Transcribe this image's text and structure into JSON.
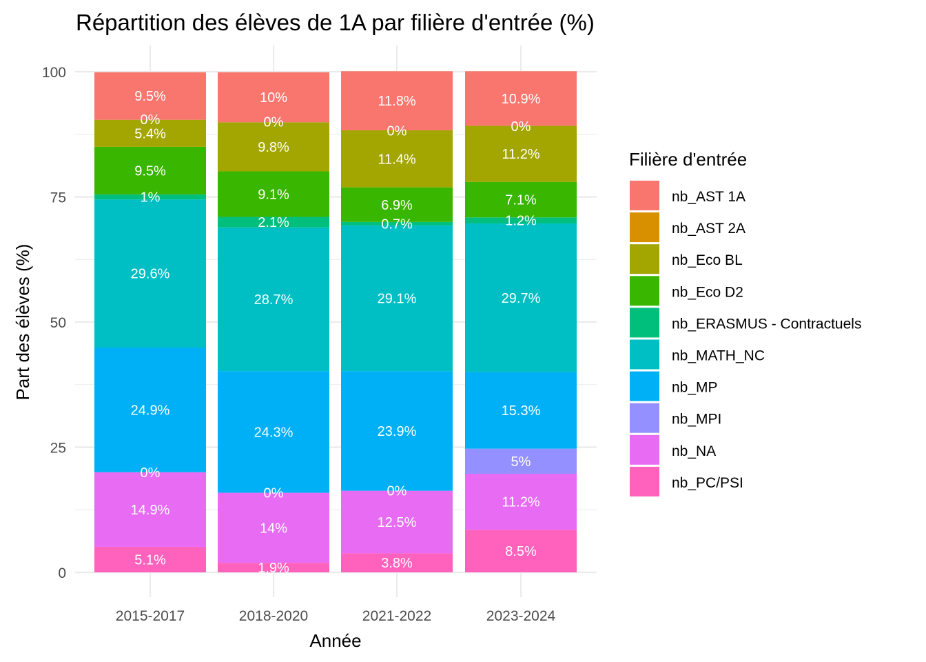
{
  "chart_data": {
    "type": "bar",
    "stacked": true,
    "title": "Répartition des élèves de 1A par filière d'entrée (%)",
    "xlabel": "Année",
    "ylabel": "Part des élèves (%)",
    "ylim": [
      0,
      100
    ],
    "yticks": [
      "0",
      "25",
      "50",
      "75",
      "100"
    ],
    "grid": true,
    "legend_title": "Filière d'entrée",
    "legend_position": "right",
    "categories": [
      "2015-2017",
      "2018-2020",
      "2021-2022",
      "2023-2024"
    ],
    "series": [
      {
        "name": "nb_AST 1A",
        "color": "#F8766D",
        "values": [
          9.5,
          10,
          11.8,
          10.9
        ],
        "labels": [
          "9.5%",
          "10%",
          "11.8%",
          "10.9%"
        ]
      },
      {
        "name": "nb_AST 2A",
        "color": "#D89000",
        "values": [
          0,
          0,
          0,
          0
        ],
        "labels": [
          "",
          "",
          "",
          ""
        ]
      },
      {
        "name": "nb_Eco BL",
        "color": "#A3A500",
        "values": [
          5.4,
          9.8,
          11.4,
          11.2
        ],
        "labels": [
          "5.4%",
          "9.8%",
          "11.4%",
          "11.2%"
        ]
      },
      {
        "name": "nb_Eco D2",
        "color": "#39B600",
        "values": [
          9.5,
          9.1,
          6.9,
          7.1
        ],
        "labels": [
          "9.5%",
          "9.1%",
          "6.9%",
          "7.1%"
        ]
      },
      {
        "name": "nb_ERASMUS - Contractuels",
        "color": "#00BF7D",
        "values": [
          1,
          2.1,
          0.7,
          1.2
        ],
        "labels": [
          "1%",
          "2.1%",
          "0.7%",
          "1.2%"
        ]
      },
      {
        "name": "nb_MATH_NC",
        "color": "#00BFC4",
        "values": [
          29.6,
          28.7,
          29.1,
          29.7
        ],
        "labels": [
          "29.6%",
          "28.7%",
          "29.1%",
          "29.7%"
        ]
      },
      {
        "name": "nb_MP",
        "color": "#00B0F6",
        "values": [
          24.9,
          24.3,
          23.9,
          15.3
        ],
        "labels": [
          "24.9%",
          "24.3%",
          "23.9%",
          "15.3%"
        ]
      },
      {
        "name": "nb_MPI",
        "color": "#9590FF",
        "values": [
          0,
          0,
          0,
          5
        ],
        "labels": [
          "",
          "",
          "",
          "5%"
        ]
      },
      {
        "name": "nb_NA",
        "color": "#E76BF3",
        "values": [
          14.9,
          14,
          12.5,
          11.2
        ],
        "labels": [
          "14.9%",
          "14%",
          "12.5%",
          "11.2%"
        ]
      },
      {
        "name": "nb_PC/PSI",
        "color": "#FF62BC",
        "values": [
          5.1,
          1.9,
          3.8,
          8.5
        ],
        "labels": [
          "5.1%",
          "1.9%",
          "3.8%",
          "8.5%"
        ]
      }
    ],
    "extra_labels": [
      {
        "category": "2015-2017",
        "y": 90.5,
        "text": "0%"
      },
      {
        "category": "2015-2017",
        "y": 20,
        "text": "0%"
      },
      {
        "category": "2018-2020",
        "y": 90,
        "text": "0%"
      },
      {
        "category": "2018-2020",
        "y": 15.9,
        "text": "0%"
      },
      {
        "category": "2021-2022",
        "y": 88.2,
        "text": "0%"
      },
      {
        "category": "2021-2022",
        "y": 16.3,
        "text": "0%"
      },
      {
        "category": "2023-2024",
        "y": 89.1,
        "text": "0%"
      }
    ]
  }
}
